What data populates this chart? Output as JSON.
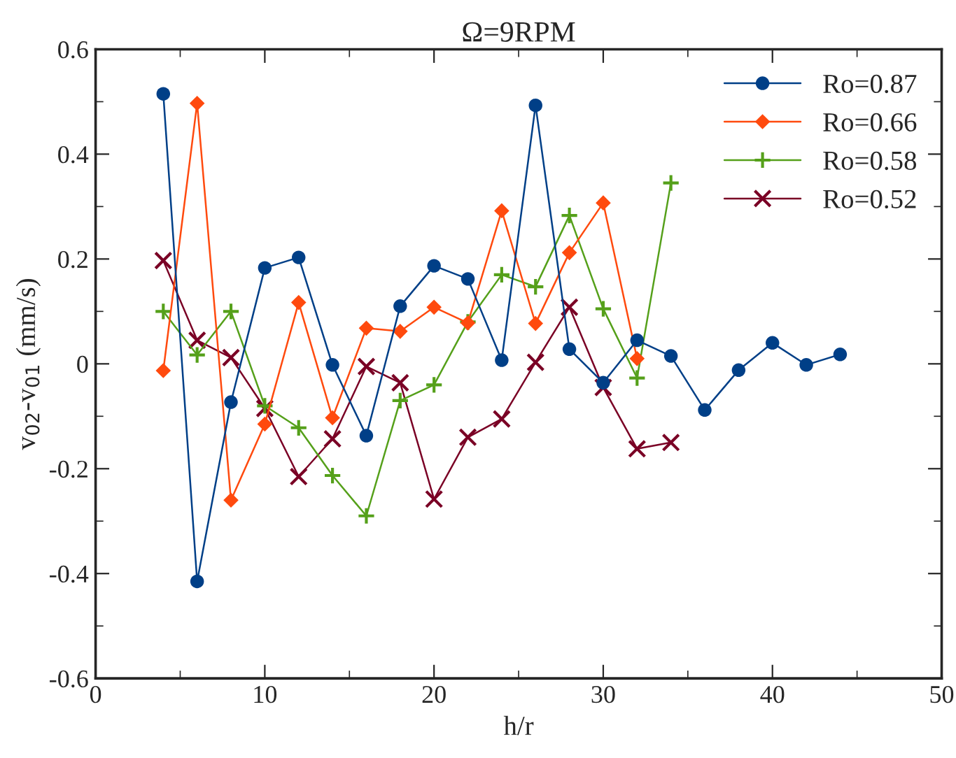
{
  "chart_data": {
    "type": "line",
    "title": "Ω=9RPM",
    "xlabel": "h/r",
    "ylabel": "v$_{02}$-v$_{01}$ (mm/s)",
    "xlim": [
      0,
      50
    ],
    "xticks": [
      0,
      10,
      20,
      30,
      40,
      50
    ],
    "ylim": [
      -0.6,
      0.6
    ],
    "yticks": [
      -0.6,
      -0.4,
      -0.2,
      0,
      0.2,
      0.4,
      0.6
    ],
    "grid": false,
    "legend": "top right",
    "series": [
      {
        "name": "Ro=0.87",
        "color": "#003f87",
        "marker": "circle",
        "x": [
          4,
          6,
          8,
          10,
          12,
          14,
          16,
          18,
          20,
          22,
          24,
          26,
          28,
          30,
          32,
          34,
          36,
          38,
          40,
          42,
          44
        ],
        "values": [
          0.515,
          -0.415,
          -0.073,
          0.183,
          0.203,
          -0.002,
          -0.137,
          0.11,
          0.187,
          0.162,
          0.007,
          0.493,
          0.028,
          -0.036,
          0.045,
          0.015,
          -0.088,
          -0.012,
          0.04,
          -0.002,
          0.018
        ]
      },
      {
        "name": "Ro=0.66",
        "color": "#ff4a0e",
        "marker": "diamond",
        "x": [
          4,
          6,
          8,
          10,
          12,
          14,
          16,
          18,
          20,
          22,
          24,
          26,
          28,
          30,
          32
        ],
        "values": [
          -0.013,
          0.497,
          -0.26,
          -0.115,
          0.117,
          -0.103,
          0.068,
          0.062,
          0.108,
          0.078,
          0.292,
          0.077,
          0.212,
          0.307,
          0.01
        ]
      },
      {
        "name": "Ro=0.58",
        "color": "#55a01a",
        "marker": "plus",
        "x": [
          4,
          6,
          8,
          10,
          12,
          14,
          16,
          18,
          20,
          22,
          24,
          26,
          28,
          30,
          32,
          34
        ],
        "values": [
          0.1,
          0.017,
          0.1,
          -0.08,
          -0.122,
          -0.213,
          -0.29,
          -0.07,
          -0.04,
          0.08,
          0.17,
          0.147,
          0.283,
          0.105,
          -0.027,
          0.345
        ]
      },
      {
        "name": "Ro=0.52",
        "color": "#7a0025",
        "marker": "cross",
        "x": [
          4,
          6,
          8,
          10,
          12,
          14,
          16,
          18,
          20,
          22,
          24,
          26,
          28,
          30,
          32,
          34
        ],
        "values": [
          0.197,
          0.045,
          0.012,
          -0.085,
          -0.215,
          -0.143,
          -0.005,
          -0.036,
          -0.258,
          -0.14,
          -0.105,
          0.003,
          0.108,
          -0.045,
          -0.162,
          -0.15
        ]
      }
    ]
  }
}
